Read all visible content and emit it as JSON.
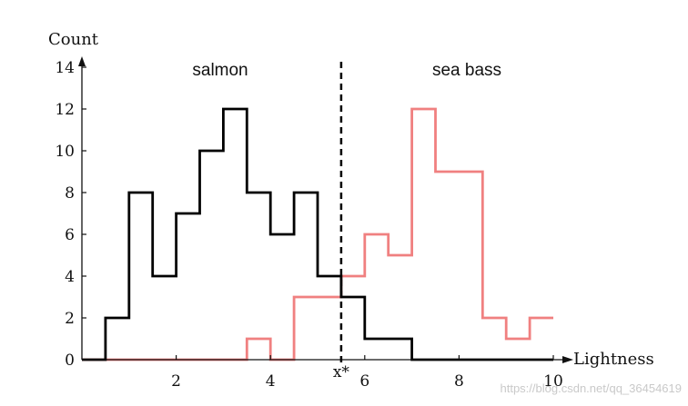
{
  "chart_data": {
    "type": "line",
    "title": "",
    "xlabel": "Lightness",
    "ylabel": "Count",
    "xlim": [
      0,
      10
    ],
    "ylim": [
      0,
      14
    ],
    "x_ticks": [
      2,
      4,
      6,
      8,
      10
    ],
    "y_ticks": [
      0,
      2,
      4,
      6,
      8,
      10,
      12,
      14
    ],
    "threshold": {
      "label": "x*",
      "x": 5.5
    },
    "bin_edges": [
      0,
      0.5,
      1,
      1.5,
      2,
      2.5,
      3,
      3.5,
      4,
      4.5,
      5,
      5.5,
      6,
      6.5,
      7,
      7.5,
      8,
      8.5,
      9,
      9.5,
      10
    ],
    "series": [
      {
        "name": "salmon",
        "color": "#000000",
        "values": [
          0,
          2,
          8,
          4,
          7,
          10,
          12,
          8,
          6,
          8,
          4,
          3,
          1,
          1,
          0,
          0,
          0,
          0,
          0,
          0
        ]
      },
      {
        "name": "sea bass",
        "color": "#f08080",
        "values": [
          0,
          0,
          0,
          0,
          0,
          0,
          0,
          1,
          0,
          3,
          3,
          4,
          6,
          5,
          12,
          9,
          9,
          2,
          1,
          2
        ]
      }
    ]
  },
  "watermark": "https://blog.csdn.net/qq_36454619"
}
